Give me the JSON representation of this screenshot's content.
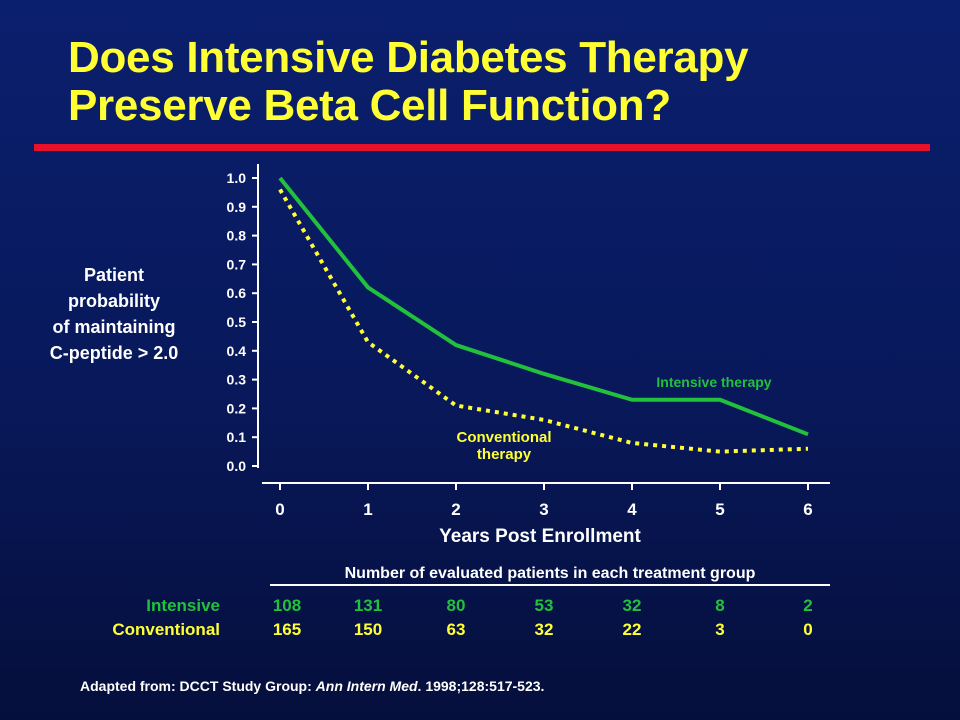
{
  "title": {
    "line1": "Does Intensive Diabetes Therapy",
    "line2": "Preserve Beta Cell Function?"
  },
  "colors": {
    "title": "#ffff33",
    "rule": "#e8102a",
    "intensive": "#21c13c",
    "conventional": "#ffff33",
    "axis": "#ffffff"
  },
  "y_axis_label_lines": [
    "Patient",
    "probability",
    "of maintaining",
    "C-peptide > 2.0"
  ],
  "x_axis_label": "Years Post Enrollment",
  "chart_data": {
    "type": "line",
    "x": [
      0,
      1,
      2,
      3,
      4,
      5,
      6
    ],
    "xlim": [
      0,
      6
    ],
    "ylim": [
      0.0,
      1.0
    ],
    "x_ticks": [
      "0",
      "1",
      "2",
      "3",
      "4",
      "5",
      "6"
    ],
    "y_ticks": [
      "0.0",
      "0.1",
      "0.2",
      "0.3",
      "0.4",
      "0.5",
      "0.6",
      "0.7",
      "0.8",
      "0.9",
      "1.0"
    ],
    "xlabel": "Years Post Enrollment",
    "ylabel": "Patient probability of maintaining C-peptide > 2.0",
    "grid": false,
    "series": [
      {
        "name": "Intensive therapy",
        "style": "solid",
        "color": "#21c13c",
        "values": [
          1.0,
          0.62,
          0.42,
          0.32,
          0.23,
          0.23,
          0.11
        ]
      },
      {
        "name": "Conventional therapy",
        "style": "dotted",
        "color": "#ffff33",
        "values": [
          0.96,
          0.43,
          0.21,
          0.16,
          0.08,
          0.05,
          0.06
        ]
      }
    ],
    "series_labels": {
      "intensive": [
        "Intensive therapy"
      ],
      "conventional": [
        "Conventional",
        "therapy"
      ]
    }
  },
  "patient_counts": {
    "header": "Number of evaluated patients in each treatment group",
    "rows": [
      {
        "label": "Intensive",
        "values": [
          "108",
          "131",
          "80",
          "53",
          "32",
          "8",
          "2"
        ]
      },
      {
        "label": "Conventional",
        "values": [
          "165",
          "150",
          "63",
          "32",
          "22",
          "3",
          "0"
        ]
      }
    ]
  },
  "footer": {
    "prefix": "Adapted from: DCCT Study Group: ",
    "journal": "Ann Intern Med",
    "suffix": ". 1998;128:517-523."
  }
}
